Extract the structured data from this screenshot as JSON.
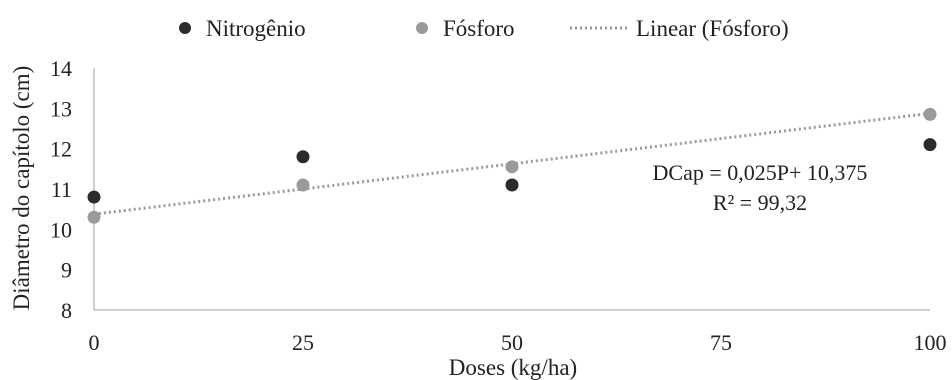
{
  "chart_data": {
    "type": "scatter",
    "xlabel": "Doses (kg/ha)",
    "ylabel": "Diâmetro do capítolo (cm)",
    "xlim": [
      0,
      100
    ],
    "ylim": [
      8,
      14
    ],
    "x_ticks": [
      "0",
      "25",
      "50",
      "75",
      "100"
    ],
    "y_ticks": [
      "8",
      "9",
      "10",
      "11",
      "12",
      "13",
      "14"
    ],
    "grid": false,
    "legend_position": "top",
    "series": [
      {
        "name": "Nitrogênio",
        "color": "#2b2b2b",
        "x": [
          0,
          25,
          50,
          100
        ],
        "y": [
          10.8,
          11.8,
          11.1,
          12.1
        ]
      },
      {
        "name": "Fósforo",
        "color": "#9a9a9a",
        "x": [
          0,
          25,
          50,
          100
        ],
        "y": [
          10.3,
          11.1,
          11.55,
          12.85
        ]
      }
    ],
    "trendline": {
      "name": "Linear (Fósforo)",
      "slope": 0.025,
      "intercept": 10.375,
      "color": "#9a9a9a",
      "style": "dotted"
    },
    "annotations": [
      "DCap = 0,025P+ 10,375",
      "R² = 99,32"
    ]
  }
}
